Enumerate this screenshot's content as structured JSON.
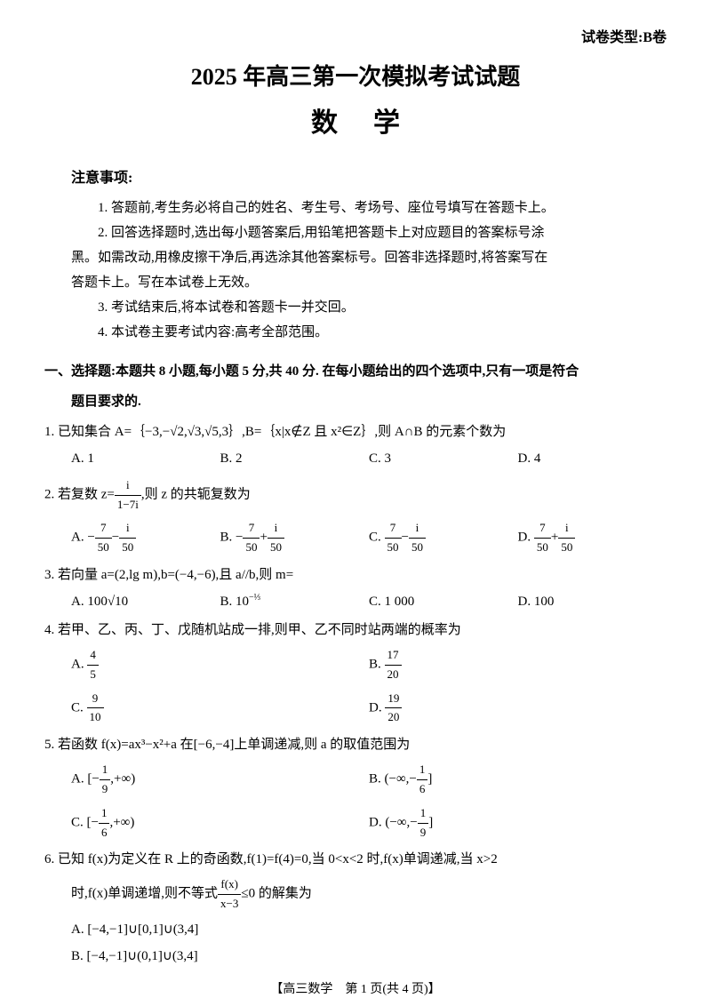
{
  "header": {
    "exam_type": "试卷类型:B卷"
  },
  "title": {
    "main": "2025 年高三第一次模拟考试试题",
    "subject": "数学"
  },
  "notice": {
    "title": "注意事项:",
    "items": [
      "1. 答题前,考生务必将自己的姓名、考生号、考场号、座位号填写在答题卡上。",
      "2. 回答选择题时,选出每小题答案后,用铅笔把答题卡上对应题目的答案标号涂",
      "3. 考试结束后,将本试卷和答题卡一并交回。",
      "4. 本试卷主要考试内容:高考全部范围。"
    ],
    "item2_cont": "黑。如需改动,用橡皮擦干净后,再选涂其他答案标号。回答非选择题时,将答案写在",
    "item2_cont2": "答题卡上。写在本试卷上无效。"
  },
  "section1": {
    "title": "一、选择题:本题共 8 小题,每小题 5 分,共 40 分. 在每小题给出的四个选项中,只有一项是符合",
    "title_cont": "题目要求的."
  },
  "q1": {
    "text": "1. 已知集合 A=｛−3,−√2,√3,√5,3｝,B=｛x|x∉Z 且 x²∈Z｝,则 A∩B 的元素个数为",
    "a": "A. 1",
    "b": "B. 2",
    "c": "C. 3",
    "d": "D. 4"
  },
  "q2": {
    "text_prefix": "2. 若复数 z=",
    "text_suffix": ",则 z 的共轭复数为",
    "frac_num": "i",
    "frac_den": "1−7i",
    "a_prefix": "A. −",
    "a_f1n": "7",
    "a_f1d": "50",
    "a_mid": "−",
    "a_f2n": "i",
    "a_f2d": "50",
    "b_prefix": "B. −",
    "b_f1n": "7",
    "b_f1d": "50",
    "b_mid": "+",
    "b_f2n": "i",
    "b_f2d": "50",
    "c_prefix": "C. ",
    "c_f1n": "7",
    "c_f1d": "50",
    "c_mid": "−",
    "c_f2n": "i",
    "c_f2d": "50",
    "d_prefix": "D. ",
    "d_f1n": "7",
    "d_f1d": "50",
    "d_mid": "+",
    "d_f2n": "i",
    "d_f2d": "50"
  },
  "q3": {
    "text": "3. 若向量 a=(2,lg m),b=(−4,−6),且 a//b,则 m=",
    "a": "A. 100√10",
    "b_prefix": "B. 10",
    "b_exp_num": "−⅓",
    "c": "C. 1 000",
    "d": "D. 100"
  },
  "q4": {
    "text": "4. 若甲、乙、丙、丁、戊随机站成一排,则甲、乙不同时站两端的概率为",
    "a_prefix": "A. ",
    "a_num": "4",
    "a_den": "5",
    "b_prefix": "B. ",
    "b_num": "17",
    "b_den": "20",
    "c_prefix": "C. ",
    "c_num": "9",
    "c_den": "10",
    "d_prefix": "D. ",
    "d_num": "19",
    "d_den": "20"
  },
  "q5": {
    "text": "5. 若函数 f(x)=ax³−x²+a 在[−6,−4]上单调递减,则 a 的取值范围为",
    "a_prefix": "A. [−",
    "a_num": "1",
    "a_den": "9",
    "a_suffix": ",+∞)",
    "b_prefix": "B. (−∞,−",
    "b_num": "1",
    "b_den": "6",
    "b_suffix": "]",
    "c_prefix": "C. [−",
    "c_num": "1",
    "c_den": "6",
    "c_suffix": ",+∞)",
    "d_prefix": "D. (−∞,−",
    "d_num": "1",
    "d_den": "9",
    "d_suffix": "]"
  },
  "q6": {
    "text1": "6. 已知 f(x)为定义在 R 上的奇函数,f(1)=f(4)=0,当 0<x<2 时,f(x)单调递减,当 x>2",
    "text2_prefix": "时,f(x)单调递增,则不等式",
    "text2_num": "f(x)",
    "text2_den": "x−3",
    "text2_suffix": "≤0 的解集为",
    "a": "A. [−4,−1]∪[0,1]∪(3,4]",
    "b": "B. [−4,−1]∪(0,1]∪(3,4]"
  },
  "footer": {
    "text": "【高三数学　第 1 页(共 4 页)】"
  }
}
